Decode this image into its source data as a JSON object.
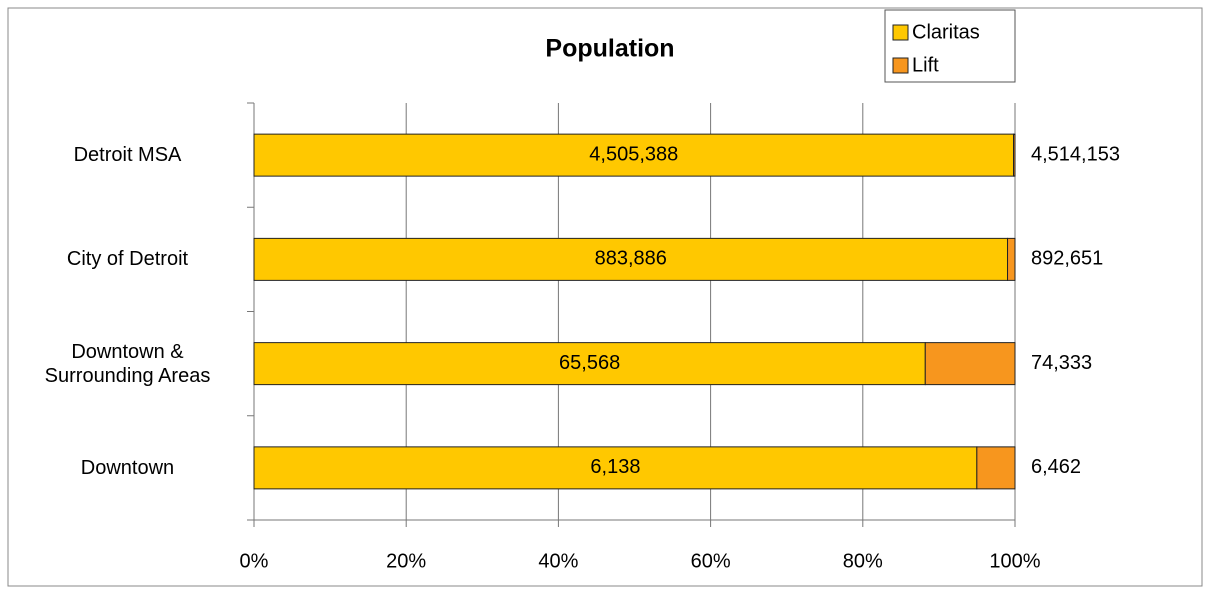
{
  "chart_data": {
    "type": "bar",
    "orientation": "horizontal",
    "stacking": "percent",
    "title": "Population",
    "categories": [
      "Detroit MSA",
      "City of Detroit",
      "Downtown & Surrounding Areas",
      "Downtown"
    ],
    "series": [
      {
        "name": "Claritas",
        "color": "#ffc800",
        "values": [
          4505388,
          883886,
          65568,
          6138
        ],
        "value_labels": [
          "4,505,388",
          "883,886",
          "65,568",
          "6,138"
        ]
      },
      {
        "name": "Lift",
        "color": "#f7961e",
        "values": [
          8765,
          8765,
          8765,
          324
        ]
      }
    ],
    "totals": [
      4514153,
      892651,
      74333,
      6462
    ],
    "total_labels": [
      "4,514,153",
      "892,651",
      "74,333",
      "6,462"
    ],
    "xlim": [
      0,
      100
    ],
    "xticks": [
      {
        "value": 0,
        "label": "0%"
      },
      {
        "value": 20,
        "label": "20%"
      },
      {
        "value": 40,
        "label": "40%"
      },
      {
        "value": 60,
        "label": "60%"
      },
      {
        "value": 80,
        "label": "80%"
      },
      {
        "value": 100,
        "label": "100%"
      }
    ],
    "grid": true,
    "legend": "top-right"
  }
}
